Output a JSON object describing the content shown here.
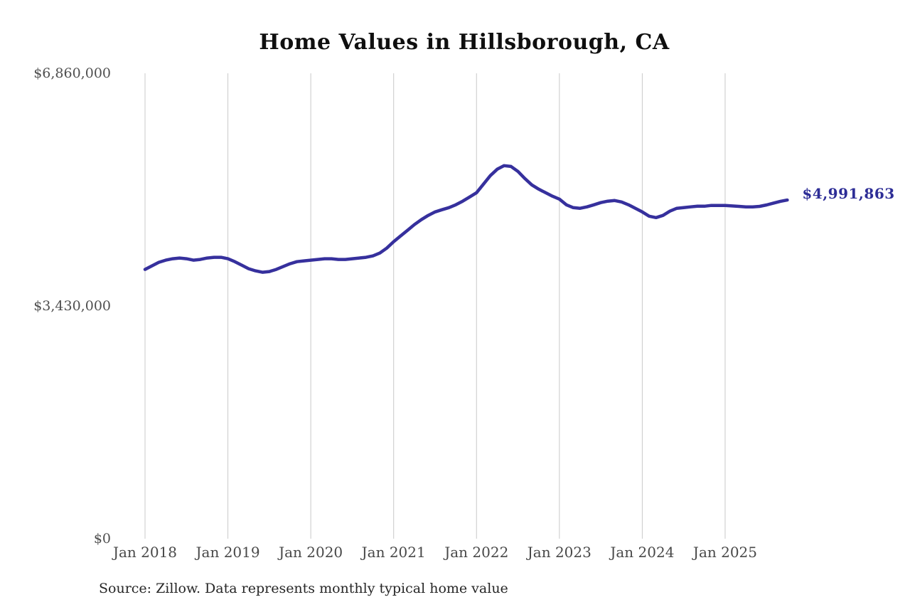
{
  "colors": {
    "background": "#ffffff",
    "line": "#36309d",
    "annotation_text": "#2d2d96",
    "gridline": "#c9c9c9",
    "tick_label": "#4f4f4f",
    "title_text": "#0f0f0f",
    "source_text": "#262626"
  },
  "source_note": "Source: Zillow. Data represents monthly typical home value",
  "chart_data": {
    "type": "line",
    "title": "Home Values in Hillsborough, CA",
    "xlabel": "",
    "ylabel": "",
    "ylim": [
      0,
      6860000
    ],
    "grid": "vertical-only",
    "legend": "none",
    "x_start": "2018-01",
    "x_interval": "month",
    "y_ticks": [
      {
        "label": "$6,860,000",
        "value": 6860000
      },
      {
        "label": "$3,430,000",
        "value": 3430000
      },
      {
        "label": "$0",
        "value": 0
      }
    ],
    "x_ticks": [
      {
        "label": "Jan 2018",
        "month_index": 0
      },
      {
        "label": "Jan 2019",
        "month_index": 12
      },
      {
        "label": "Jan 2020",
        "month_index": 24
      },
      {
        "label": "Jan 2021",
        "month_index": 36
      },
      {
        "label": "Jan 2022",
        "month_index": 48
      },
      {
        "label": "Jan 2023",
        "month_index": 60
      },
      {
        "label": "Jan 2024",
        "month_index": 72
      },
      {
        "label": "Jan 2025",
        "month_index": 84
      }
    ],
    "annotation": {
      "text": "$4,991,863",
      "value": 4991863,
      "position": "line-end"
    },
    "series": [
      {
        "name": "Monthly typical home value",
        "values": [
          3969000,
          4022000,
          4074000,
          4105000,
          4126000,
          4137000,
          4126000,
          4105000,
          4116000,
          4137000,
          4147000,
          4147000,
          4126000,
          4084000,
          4032000,
          3980000,
          3948000,
          3927000,
          3938000,
          3969000,
          4011000,
          4053000,
          4084000,
          4095000,
          4105000,
          4116000,
          4126000,
          4126000,
          4116000,
          4116000,
          4126000,
          4137000,
          4147000,
          4168000,
          4210000,
          4283000,
          4378000,
          4462000,
          4545000,
          4629000,
          4702000,
          4765000,
          4817000,
          4849000,
          4880000,
          4922000,
          4975000,
          5037000,
          5100000,
          5226000,
          5352000,
          5446000,
          5498000,
          5487000,
          5414000,
          5309000,
          5215000,
          5152000,
          5100000,
          5048000,
          5006000,
          4922000,
          4880000,
          4870000,
          4891000,
          4922000,
          4954000,
          4975000,
          4985000,
          4964000,
          4922000,
          4870000,
          4817000,
          4754000,
          4733000,
          4765000,
          4828000,
          4870000,
          4880000,
          4891000,
          4901000,
          4901000,
          4912000,
          4912000,
          4912000,
          4905000,
          4898000,
          4891000,
          4891000,
          4898000,
          4919000,
          4947000,
          4973000,
          4991863
        ]
      }
    ]
  }
}
